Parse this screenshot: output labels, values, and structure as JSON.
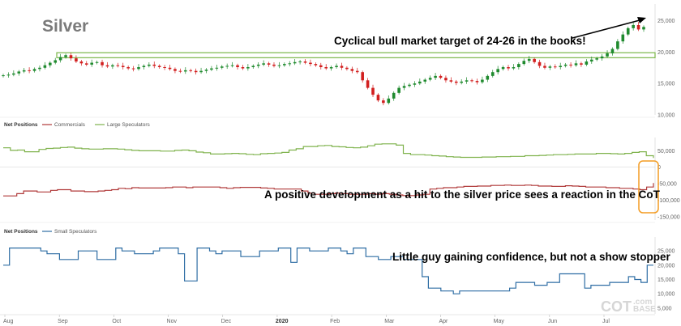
{
  "chart_data": [
    {
      "type": "candlestick",
      "title": "Silver",
      "y_ticks": [
        "25,000",
        "20,000",
        "15,000",
        "10,000"
      ],
      "ylim": [
        10,
        27
      ],
      "x_ticks": [
        "Aug",
        "Sep",
        "Oct",
        "Nov",
        "Dec",
        "2020",
        "Feb",
        "Mar",
        "Apr",
        "May",
        "Jun",
        "Jul"
      ],
      "bold_x_tick": "2020",
      "annotation": "Cyclical bull market target of 24-26 in the books!",
      "target_zone": [
        19.1,
        19.9
      ],
      "up_color": "#1f8a2e",
      "down_color": "#d21f1f",
      "zone_color": "#7ab648",
      "close": [
        16.3,
        16.4,
        16.6,
        16.9,
        17.1,
        17.0,
        17.3,
        17.5,
        17.9,
        18.3,
        18.7,
        19.2,
        19.5,
        19.0,
        18.5,
        18.2,
        18.0,
        18.3,
        18.4,
        17.9,
        17.7,
        17.9,
        17.8,
        17.6,
        17.4,
        17.3,
        17.6,
        17.8,
        18.0,
        17.8,
        17.6,
        17.5,
        17.3,
        17.0,
        16.9,
        17.1,
        17.0,
        16.8,
        17.0,
        17.2,
        17.4,
        17.5,
        17.7,
        17.8,
        17.9,
        17.6,
        17.4,
        17.6,
        17.8,
        18.0,
        18.2,
        18.0,
        17.8,
        17.9,
        18.1,
        18.2,
        18.4,
        18.5,
        18.3,
        18.1,
        17.9,
        17.6,
        17.4,
        17.6,
        17.8,
        17.5,
        17.3,
        17.0,
        16.8,
        15.5,
        14.3,
        13.2,
        12.3,
        11.9,
        12.6,
        13.5,
        14.3,
        14.6,
        14.8,
        15.0,
        15.3,
        15.6,
        15.9,
        16.2,
        15.9,
        15.5,
        15.3,
        15.1,
        15.3,
        15.5,
        15.4,
        15.2,
        15.6,
        16.2,
        16.8,
        17.3,
        17.6,
        17.4,
        17.6,
        18.1,
        18.6,
        18.9,
        18.4,
        17.8,
        17.5,
        17.7,
        17.6,
        17.8,
        18.0,
        17.9,
        18.2,
        18.0,
        18.5,
        18.8,
        19.0,
        19.3,
        19.8,
        20.5,
        21.7,
        22.8,
        23.8,
        24.3,
        23.6,
        24.0
      ]
    },
    {
      "type": "line",
      "panel_label": "Net Positions",
      "series": [
        {
          "name": "Commercials",
          "color": "#b03a3a",
          "values": [
            -87,
            -87,
            -80,
            -72,
            -72,
            -75,
            -75,
            -70,
            -68,
            -68,
            -72,
            -72,
            -74,
            -74,
            -72,
            -70,
            -68,
            -64,
            -65,
            -62,
            -63,
            -63,
            -63,
            -63,
            -62,
            -60,
            -60,
            -62,
            -60,
            -60,
            -60,
            -60,
            -62,
            -64,
            -62,
            -61,
            -61,
            -61,
            -63,
            -64,
            -66,
            -66,
            -66,
            -66,
            -72,
            -78,
            -82,
            -82,
            -80,
            -78,
            -80,
            -82,
            -82,
            -82,
            -80,
            -82,
            -80,
            -82,
            -84,
            -86,
            -86,
            -84,
            -82,
            -66,
            -64,
            -62,
            -62,
            -60,
            -58,
            -58,
            -57,
            -57,
            -55,
            -55,
            -54,
            -55,
            -55,
            -54,
            -55,
            -57,
            -57,
            -58,
            -58,
            -56,
            -57,
            -58,
            -60,
            -60,
            -60,
            -62,
            -62,
            -64,
            -64,
            -66,
            -68,
            -60,
            -48
          ]
        },
        {
          "name": "Large Speculators",
          "color": "#7fb24c",
          "values": [
            59,
            51,
            52,
            47,
            47,
            54,
            57,
            58,
            60,
            61,
            58,
            56,
            55,
            55,
            56,
            56,
            55,
            53,
            51,
            50,
            50,
            50,
            49,
            49,
            51,
            52,
            50,
            46,
            44,
            40,
            40,
            41,
            42,
            41,
            39,
            38,
            41,
            42,
            43,
            45,
            52,
            56,
            63,
            63,
            65,
            66,
            63,
            62,
            60,
            59,
            61,
            65,
            70,
            71,
            71,
            67,
            42,
            38,
            38,
            37,
            35,
            34,
            32,
            31,
            30,
            30,
            30,
            31,
            31,
            32,
            32,
            33,
            33,
            35,
            35,
            36,
            37,
            38,
            38,
            39,
            40,
            40,
            40,
            42,
            42,
            41,
            40,
            42,
            45,
            47,
            35,
            28
          ]
        }
      ],
      "y_ticks": [
        "50,000",
        "0",
        "-50,000",
        "-100,000",
        "-150,000"
      ],
      "ylim": [
        -160,
        95
      ],
      "annotation": "A positive development as a hit to the silver price sees a reaction in the CoT",
      "highlight_color": "#f39c22"
    },
    {
      "type": "line",
      "panel_label": "Net Positions",
      "series": [
        {
          "name": "Small Speculators",
          "color": "#2e6da4",
          "values": [
            20,
            26,
            26,
            26,
            26,
            26,
            25,
            24,
            24,
            22,
            22,
            22,
            25,
            25,
            25,
            22,
            22,
            22,
            26,
            25,
            25,
            24,
            24,
            24,
            25,
            26,
            26,
            26,
            24,
            14.5,
            14.5,
            26,
            26,
            25,
            24,
            25,
            25,
            25,
            23,
            23,
            23,
            25,
            25,
            25,
            26,
            26,
            21,
            26,
            26,
            25,
            25,
            25,
            26,
            26,
            25,
            24,
            26,
            26,
            23,
            23,
            22,
            22,
            23,
            23,
            22,
            22,
            22,
            16,
            12,
            12,
            11,
            11,
            10,
            11,
            11,
            11,
            11,
            11,
            11,
            11,
            11,
            12,
            14,
            14,
            14,
            13,
            13,
            14,
            14,
            17,
            17,
            17,
            17,
            12,
            13,
            13,
            13,
            14,
            14,
            14,
            16,
            15,
            14,
            20,
            20
          ]
        }
      ],
      "y_ticks": [
        "25,000",
        "20,000",
        "15,000",
        "10,000",
        "5,000"
      ],
      "ylim": [
        3,
        29
      ],
      "annotation": "Little guy gaining confidence, but not a show stopper"
    }
  ],
  "watermark": {
    "main": "COT",
    "suffix": "BASE",
    "domain": ".com"
  }
}
